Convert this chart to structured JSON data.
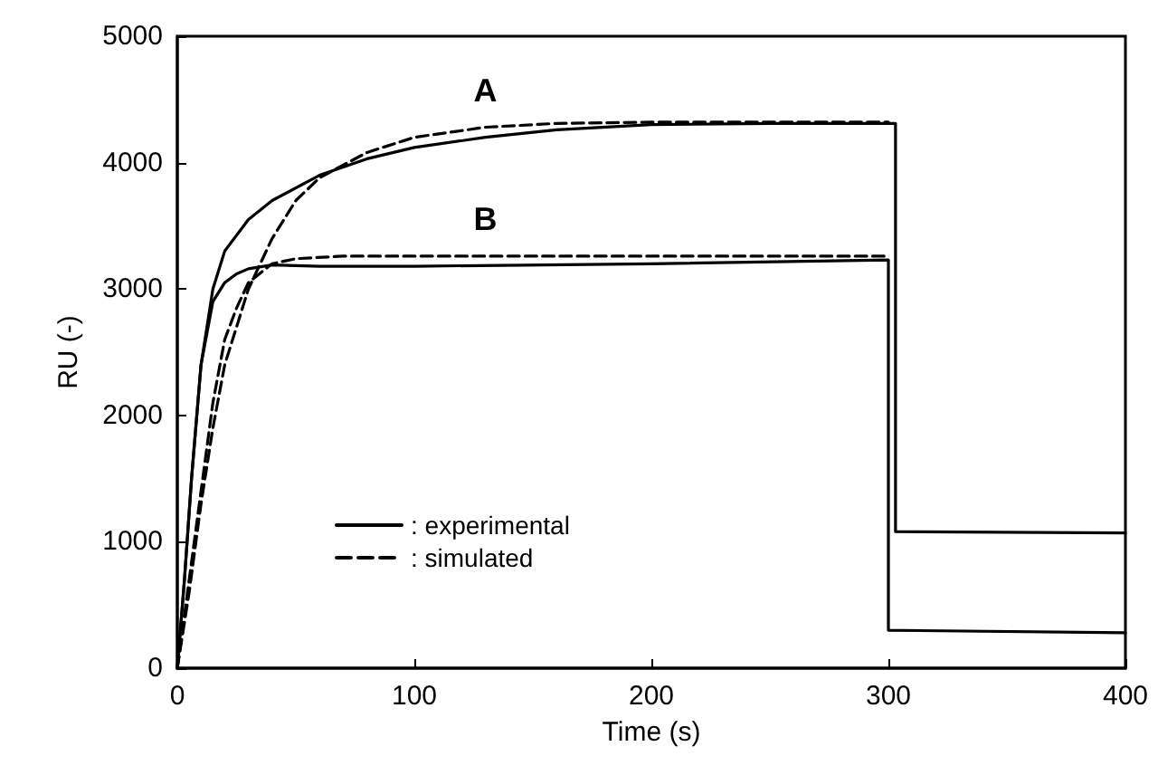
{
  "chart_data": {
    "type": "line",
    "xlabel": "Time (s)",
    "ylabel": "RU (-)",
    "xlim": [
      0,
      400
    ],
    "xticks": [
      0,
      100,
      200,
      300,
      400
    ],
    "ylim": [
      0,
      5000
    ],
    "yticks": [
      0,
      1000,
      2000,
      3000,
      4000,
      5000
    ],
    "grid": false,
    "legend": "bottom left",
    "marker": "none",
    "annotations": [
      {
        "text": "A",
        "x": 130,
        "y": 4200
      },
      {
        "text": "B",
        "x": 130,
        "y": 3180
      }
    ],
    "series": [
      {
        "name": ": experimental",
        "color": "#000000",
        "line_style": "solid",
        "x": [
          0,
          3,
          6,
          10,
          15,
          20,
          30,
          40,
          60,
          80,
          100,
          130,
          160,
          200,
          250,
          303,
          303,
          400
        ],
        "values": [
          0,
          700,
          1500,
          2400,
          3000,
          3300,
          3550,
          3700,
          3900,
          4030,
          4120,
          4200,
          4260,
          4300,
          4310,
          4310,
          1080,
          1070
        ]
      },
      {
        "name": ": simulated",
        "color": "#000000",
        "line_style": "dashed",
        "x": [
          0,
          5,
          10,
          15,
          20,
          30,
          40,
          50,
          60,
          80,
          100,
          130,
          160,
          200,
          300
        ],
        "values": [
          0,
          600,
          1300,
          1900,
          2400,
          3000,
          3400,
          3700,
          3880,
          4080,
          4200,
          4280,
          4310,
          4320,
          4320
        ]
      },
      {
        "color": "#000000",
        "line_style": "solid",
        "x": [
          0,
          3,
          6,
          10,
          15,
          20,
          25,
          30,
          40,
          60,
          100,
          200,
          300,
          300,
          400
        ],
        "values": [
          0,
          700,
          1500,
          2400,
          2900,
          3050,
          3120,
          3160,
          3190,
          3180,
          3180,
          3200,
          3230,
          300,
          280
        ]
      },
      {
        "color": "#000000",
        "line_style": "dashed",
        "x": [
          0,
          5,
          10,
          15,
          20,
          25,
          30,
          40,
          50,
          70,
          100,
          200,
          300
        ],
        "values": [
          0,
          700,
          1400,
          2100,
          2600,
          2850,
          3050,
          3200,
          3240,
          3260,
          3260,
          3260,
          3260
        ]
      }
    ]
  }
}
